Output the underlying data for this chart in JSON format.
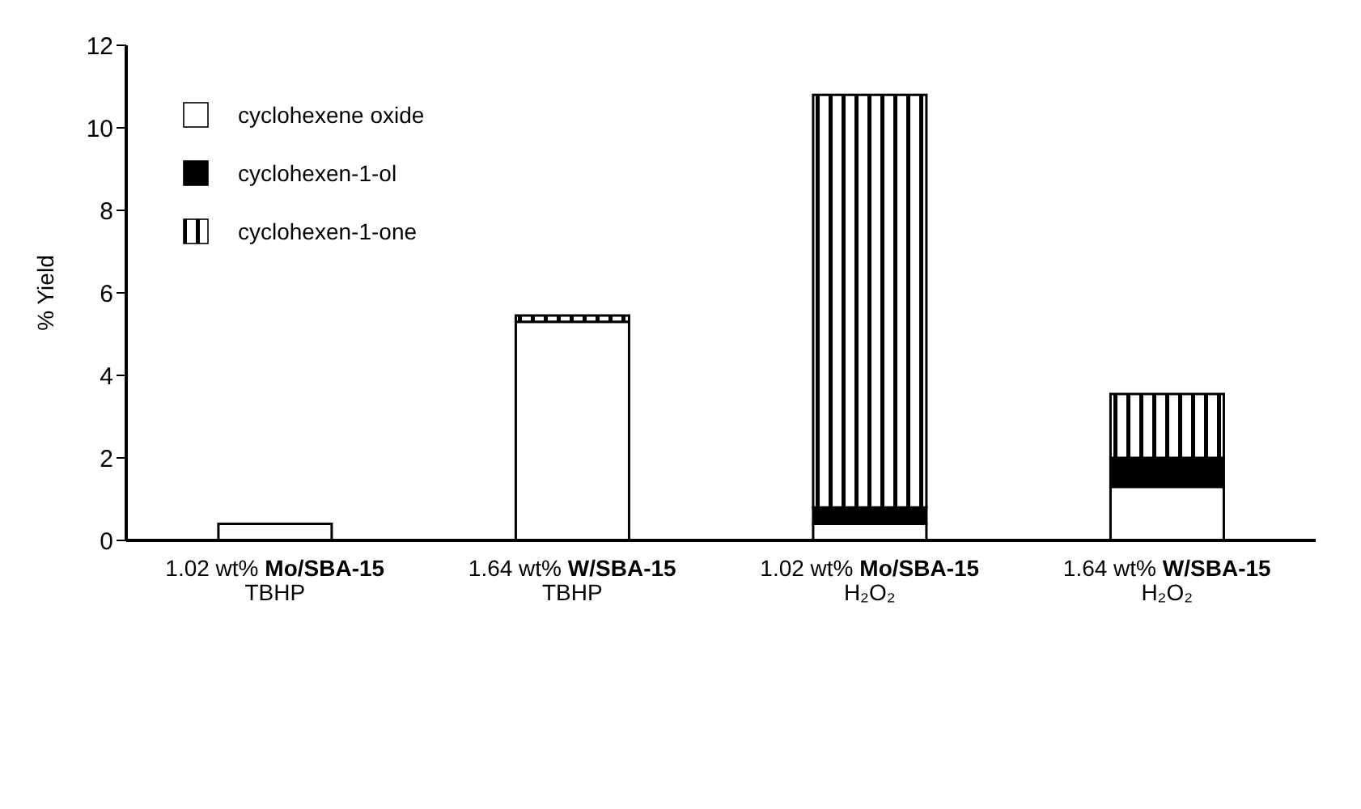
{
  "chart_data": {
    "type": "bar",
    "stacked": true,
    "ylabel": "% Yield",
    "categories": [
      "1.02 wt% Mo/SBA-15\nTBHP",
      "1.64 wt% W/SBA-15\nTBHP",
      "1.02 wt% Mo/SBA-15\nH₂O₂",
      "1.64 wt% W/SBA-15\nH₂O₂"
    ],
    "series": [
      {
        "name": "cyclohexene oxide",
        "color": "#ffffff",
        "values": [
          0.4,
          5.3,
          0.4,
          1.3
        ]
      },
      {
        "name": "cyclohexen-1-ol",
        "color": "#000000",
        "values": [
          0,
          0,
          0.4,
          0.7
        ]
      },
      {
        "name": "cyclohexen-1-one",
        "color": "#000000",
        "values": [
          0,
          0.15,
          10.0,
          1.55
        ]
      }
    ],
    "ylim": [
      0,
      12
    ],
    "yticks": [
      0,
      2,
      4,
      6,
      8,
      10,
      12
    ],
    "legend": "top left"
  }
}
